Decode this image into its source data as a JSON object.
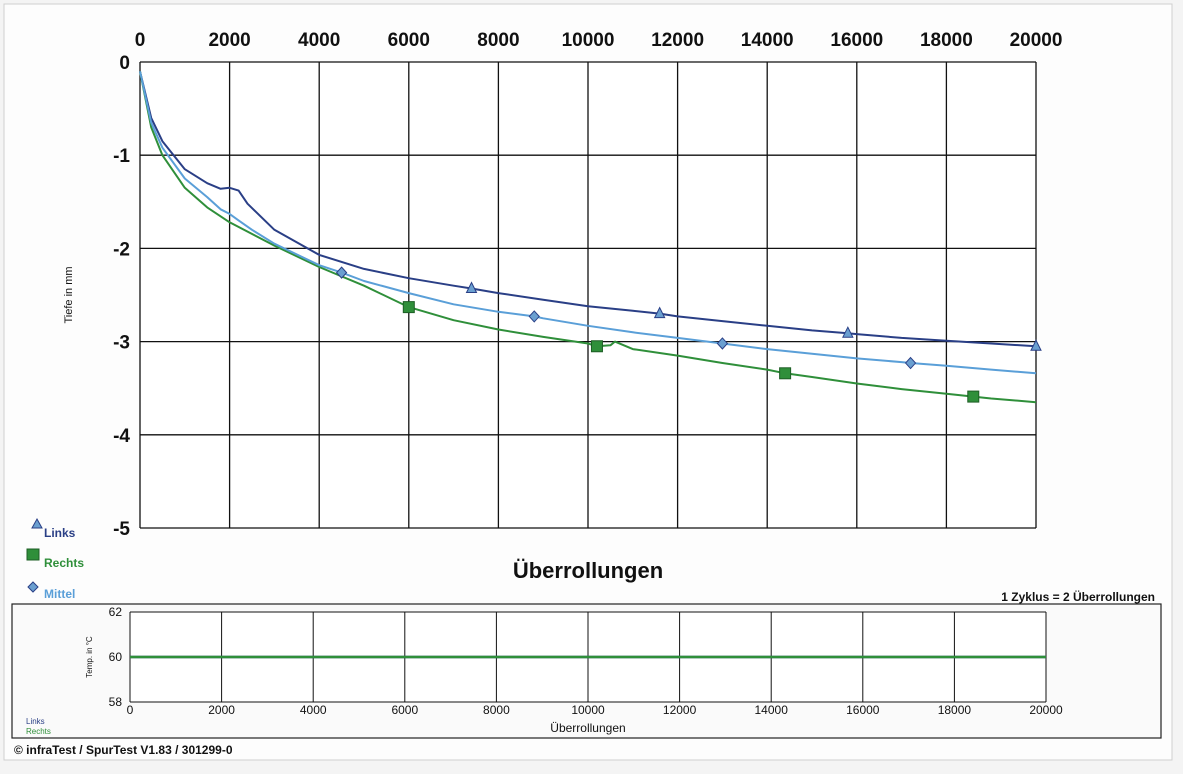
{
  "chart_data": [
    {
      "type": "line",
      "title": "",
      "xlabel": "Überrollungen",
      "ylabel": "Tiefe in mm",
      "xlim": [
        0,
        20000
      ],
      "ylim": [
        -5,
        0
      ],
      "x_ticks": [
        "0",
        "2000",
        "4000",
        "6000",
        "8000",
        "10000",
        "12000",
        "14000",
        "16000",
        "18000",
        "20000"
      ],
      "y_ticks": [
        "0",
        "-1",
        "-2",
        "-3",
        "-4",
        "-5"
      ],
      "grid": true,
      "legend_placement": "bottom-left",
      "series": [
        {
          "name": "Links",
          "color": "#2a3f86",
          "marker": "triangle",
          "x": [
            0,
            250,
            500,
            1000,
            1500,
            1800,
            2000,
            2200,
            2400,
            3000,
            4000,
            5000,
            6000,
            7000,
            7400,
            8000,
            9000,
            10000,
            11000,
            11600,
            12000,
            13000,
            14000,
            15000,
            15800,
            16000,
            17000,
            18000,
            19000,
            20000
          ],
          "y": [
            -0.1,
            -0.6,
            -0.85,
            -1.15,
            -1.3,
            -1.36,
            -1.35,
            -1.38,
            -1.52,
            -1.8,
            -2.07,
            -2.22,
            -2.32,
            -2.4,
            -2.43,
            -2.48,
            -2.55,
            -2.62,
            -2.67,
            -2.7,
            -2.73,
            -2.78,
            -2.83,
            -2.88,
            -2.91,
            -2.92,
            -2.96,
            -2.99,
            -3.02,
            -3.05
          ],
          "marker_x": [
            7400,
            11600,
            15800,
            20000
          ],
          "marker_y": [
            -2.43,
            -2.7,
            -2.91,
            -3.05
          ]
        },
        {
          "name": "Rechts",
          "color": "#2f8f3a",
          "marker": "square",
          "x": [
            0,
            250,
            500,
            1000,
            1500,
            2000,
            3000,
            4000,
            5000,
            6000,
            7000,
            8000,
            9000,
            10000,
            10200,
            10500,
            10600,
            11000,
            12000,
            13000,
            14000,
            14400,
            15000,
            16000,
            17000,
            18000,
            18600,
            19000,
            20000
          ],
          "y": [
            -0.1,
            -0.7,
            -1.0,
            -1.35,
            -1.56,
            -1.72,
            -1.97,
            -2.2,
            -2.4,
            -2.63,
            -2.77,
            -2.87,
            -2.95,
            -3.02,
            -3.05,
            -3.04,
            -3.0,
            -3.08,
            -3.15,
            -3.23,
            -3.3,
            -3.34,
            -3.38,
            -3.45,
            -3.51,
            -3.56,
            -3.59,
            -3.61,
            -3.65
          ],
          "marker_x": [
            6000,
            10200,
            14400,
            18600
          ],
          "marker_y": [
            -2.63,
            -3.05,
            -3.34,
            -3.59
          ]
        },
        {
          "name": "Mittel",
          "color": "#5a9fd8",
          "marker": "diamond",
          "x": [
            0,
            250,
            500,
            1000,
            1500,
            1800,
            2000,
            2200,
            2500,
            3000,
            4000,
            4500,
            5000,
            6000,
            7000,
            8000,
            8800,
            9000,
            10000,
            11000,
            12000,
            13000,
            14000,
            15000,
            16000,
            17000,
            17200,
            18000,
            19000,
            20000
          ],
          "y": [
            -0.1,
            -0.65,
            -0.92,
            -1.25,
            -1.45,
            -1.58,
            -1.63,
            -1.7,
            -1.8,
            -1.95,
            -2.18,
            -2.26,
            -2.35,
            -2.48,
            -2.6,
            -2.68,
            -2.73,
            -2.75,
            -2.83,
            -2.9,
            -2.96,
            -3.02,
            -3.08,
            -3.13,
            -3.18,
            -3.22,
            -3.23,
            -3.26,
            -3.3,
            -3.34
          ],
          "marker_x": [
            4500,
            8800,
            13000,
            17200
          ],
          "marker_y": [
            -2.26,
            -2.73,
            -3.02,
            -3.23
          ]
        }
      ]
    },
    {
      "type": "line",
      "title": "",
      "xlabel": "Überrollungen",
      "ylabel": "Temp. in °C",
      "xlim": [
        0,
        20000
      ],
      "ylim": [
        58,
        62
      ],
      "x_ticks": [
        "0",
        "2000",
        "4000",
        "6000",
        "8000",
        "10000",
        "12000",
        "14000",
        "16000",
        "18000",
        "20000"
      ],
      "y_ticks": [
        "62",
        "60",
        "58"
      ],
      "grid": true,
      "legend_placement": "bottom-left",
      "series": [
        {
          "name": "Links",
          "color": "#2a3f86",
          "x": [
            0,
            20000
          ],
          "y": [
            60,
            60
          ]
        },
        {
          "name": "Rechts",
          "color": "#2f8f3a",
          "x": [
            0,
            2000,
            4000,
            6000,
            8000,
            10000,
            12000,
            14000,
            16000,
            18000,
            20000
          ],
          "y": [
            60,
            60,
            60,
            60,
            60,
            60,
            60,
            60,
            60,
            60,
            60
          ]
        }
      ]
    }
  ],
  "annotations": {
    "cycle_note": "1 Zyklus = 2 Überrollungen",
    "footer": "© infraTest / SpurTest V1.83 / 301299-0"
  }
}
